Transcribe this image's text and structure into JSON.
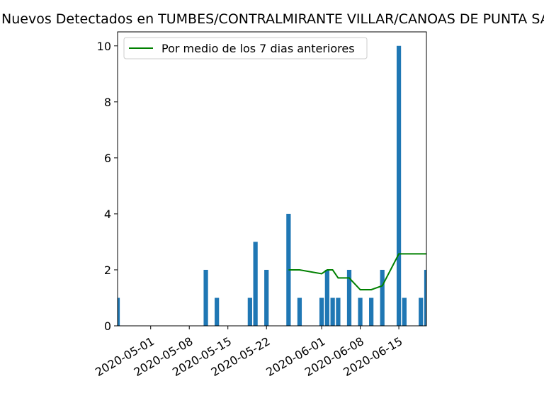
{
  "chart_data": {
    "type": "bar",
    "title": "Nuevos Detectados en TUMBES/CONTRALMIRANTE VILLAR/CANOAS DE PUNTA SAL",
    "xlabel": "",
    "ylabel": "",
    "xlim": [
      "2020-04-25",
      "2020-06-20"
    ],
    "ylim": [
      0,
      10.5
    ],
    "yticks": [
      0,
      2,
      4,
      6,
      8,
      10
    ],
    "xticks": [
      "2020-05-01",
      "2020-05-08",
      "2020-05-15",
      "2020-05-22",
      "2020-06-01",
      "2020-06-08",
      "2020-06-15"
    ],
    "bar_color": "#1f77b4",
    "line_color": "#008000",
    "legend_position": "upper-left",
    "grid": false,
    "bars": [
      {
        "date": "2020-04-25",
        "value": 1
      },
      {
        "date": "2020-05-11",
        "value": 2
      },
      {
        "date": "2020-05-13",
        "value": 1
      },
      {
        "date": "2020-05-19",
        "value": 1
      },
      {
        "date": "2020-05-20",
        "value": 3
      },
      {
        "date": "2020-05-22",
        "value": 2
      },
      {
        "date": "2020-05-26",
        "value": 4
      },
      {
        "date": "2020-05-28",
        "value": 1
      },
      {
        "date": "2020-06-01",
        "value": 1
      },
      {
        "date": "2020-06-02",
        "value": 2
      },
      {
        "date": "2020-06-03",
        "value": 1
      },
      {
        "date": "2020-06-04",
        "value": 1
      },
      {
        "date": "2020-06-06",
        "value": 2
      },
      {
        "date": "2020-06-08",
        "value": 1
      },
      {
        "date": "2020-06-10",
        "value": 1
      },
      {
        "date": "2020-06-12",
        "value": 2
      },
      {
        "date": "2020-06-15",
        "value": 10
      },
      {
        "date": "2020-06-16",
        "value": 1
      },
      {
        "date": "2020-06-19",
        "value": 1
      },
      {
        "date": "2020-06-20",
        "value": 2
      }
    ],
    "series": [
      {
        "name": "Por medio de los 7 dias anteriores",
        "points": [
          {
            "date": "2020-05-26",
            "value": 2.0
          },
          {
            "date": "2020-05-28",
            "value": 2.0
          },
          {
            "date": "2020-06-01",
            "value": 1.86
          },
          {
            "date": "2020-06-02",
            "value": 2.0
          },
          {
            "date": "2020-06-03",
            "value": 2.0
          },
          {
            "date": "2020-06-04",
            "value": 1.71
          },
          {
            "date": "2020-06-06",
            "value": 1.71
          },
          {
            "date": "2020-06-08",
            "value": 1.29
          },
          {
            "date": "2020-06-10",
            "value": 1.29
          },
          {
            "date": "2020-06-12",
            "value": 1.43
          },
          {
            "date": "2020-06-15",
            "value": 2.57
          },
          {
            "date": "2020-06-16",
            "value": 2.57
          },
          {
            "date": "2020-06-19",
            "value": 2.57
          },
          {
            "date": "2020-06-20",
            "value": 2.57
          }
        ]
      }
    ]
  }
}
